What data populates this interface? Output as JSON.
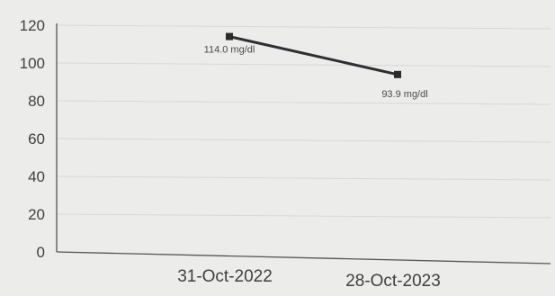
{
  "chart_data": {
    "type": "line",
    "title": "",
    "xlabel": "",
    "ylabel": "",
    "categories": [
      "31-Oct-2022",
      "28-Oct-2023"
    ],
    "series": [
      {
        "values": [
          114.0,
          93.9
        ],
        "data_labels": [
          "114.0 mg/dl",
          "93.9 mg/dl"
        ]
      }
    ],
    "y_ticks": [
      "0",
      "20",
      "40",
      "60",
      "80",
      "100",
      "120"
    ],
    "ylim": [
      0,
      120
    ],
    "grid": true,
    "legend": "none",
    "colors": {
      "line": "#2e2e33",
      "marker": "#2b2b2b",
      "grid": "#d8d8d6",
      "axis": "#555555",
      "text": "#3f3f3f",
      "background": "#ececea"
    }
  }
}
